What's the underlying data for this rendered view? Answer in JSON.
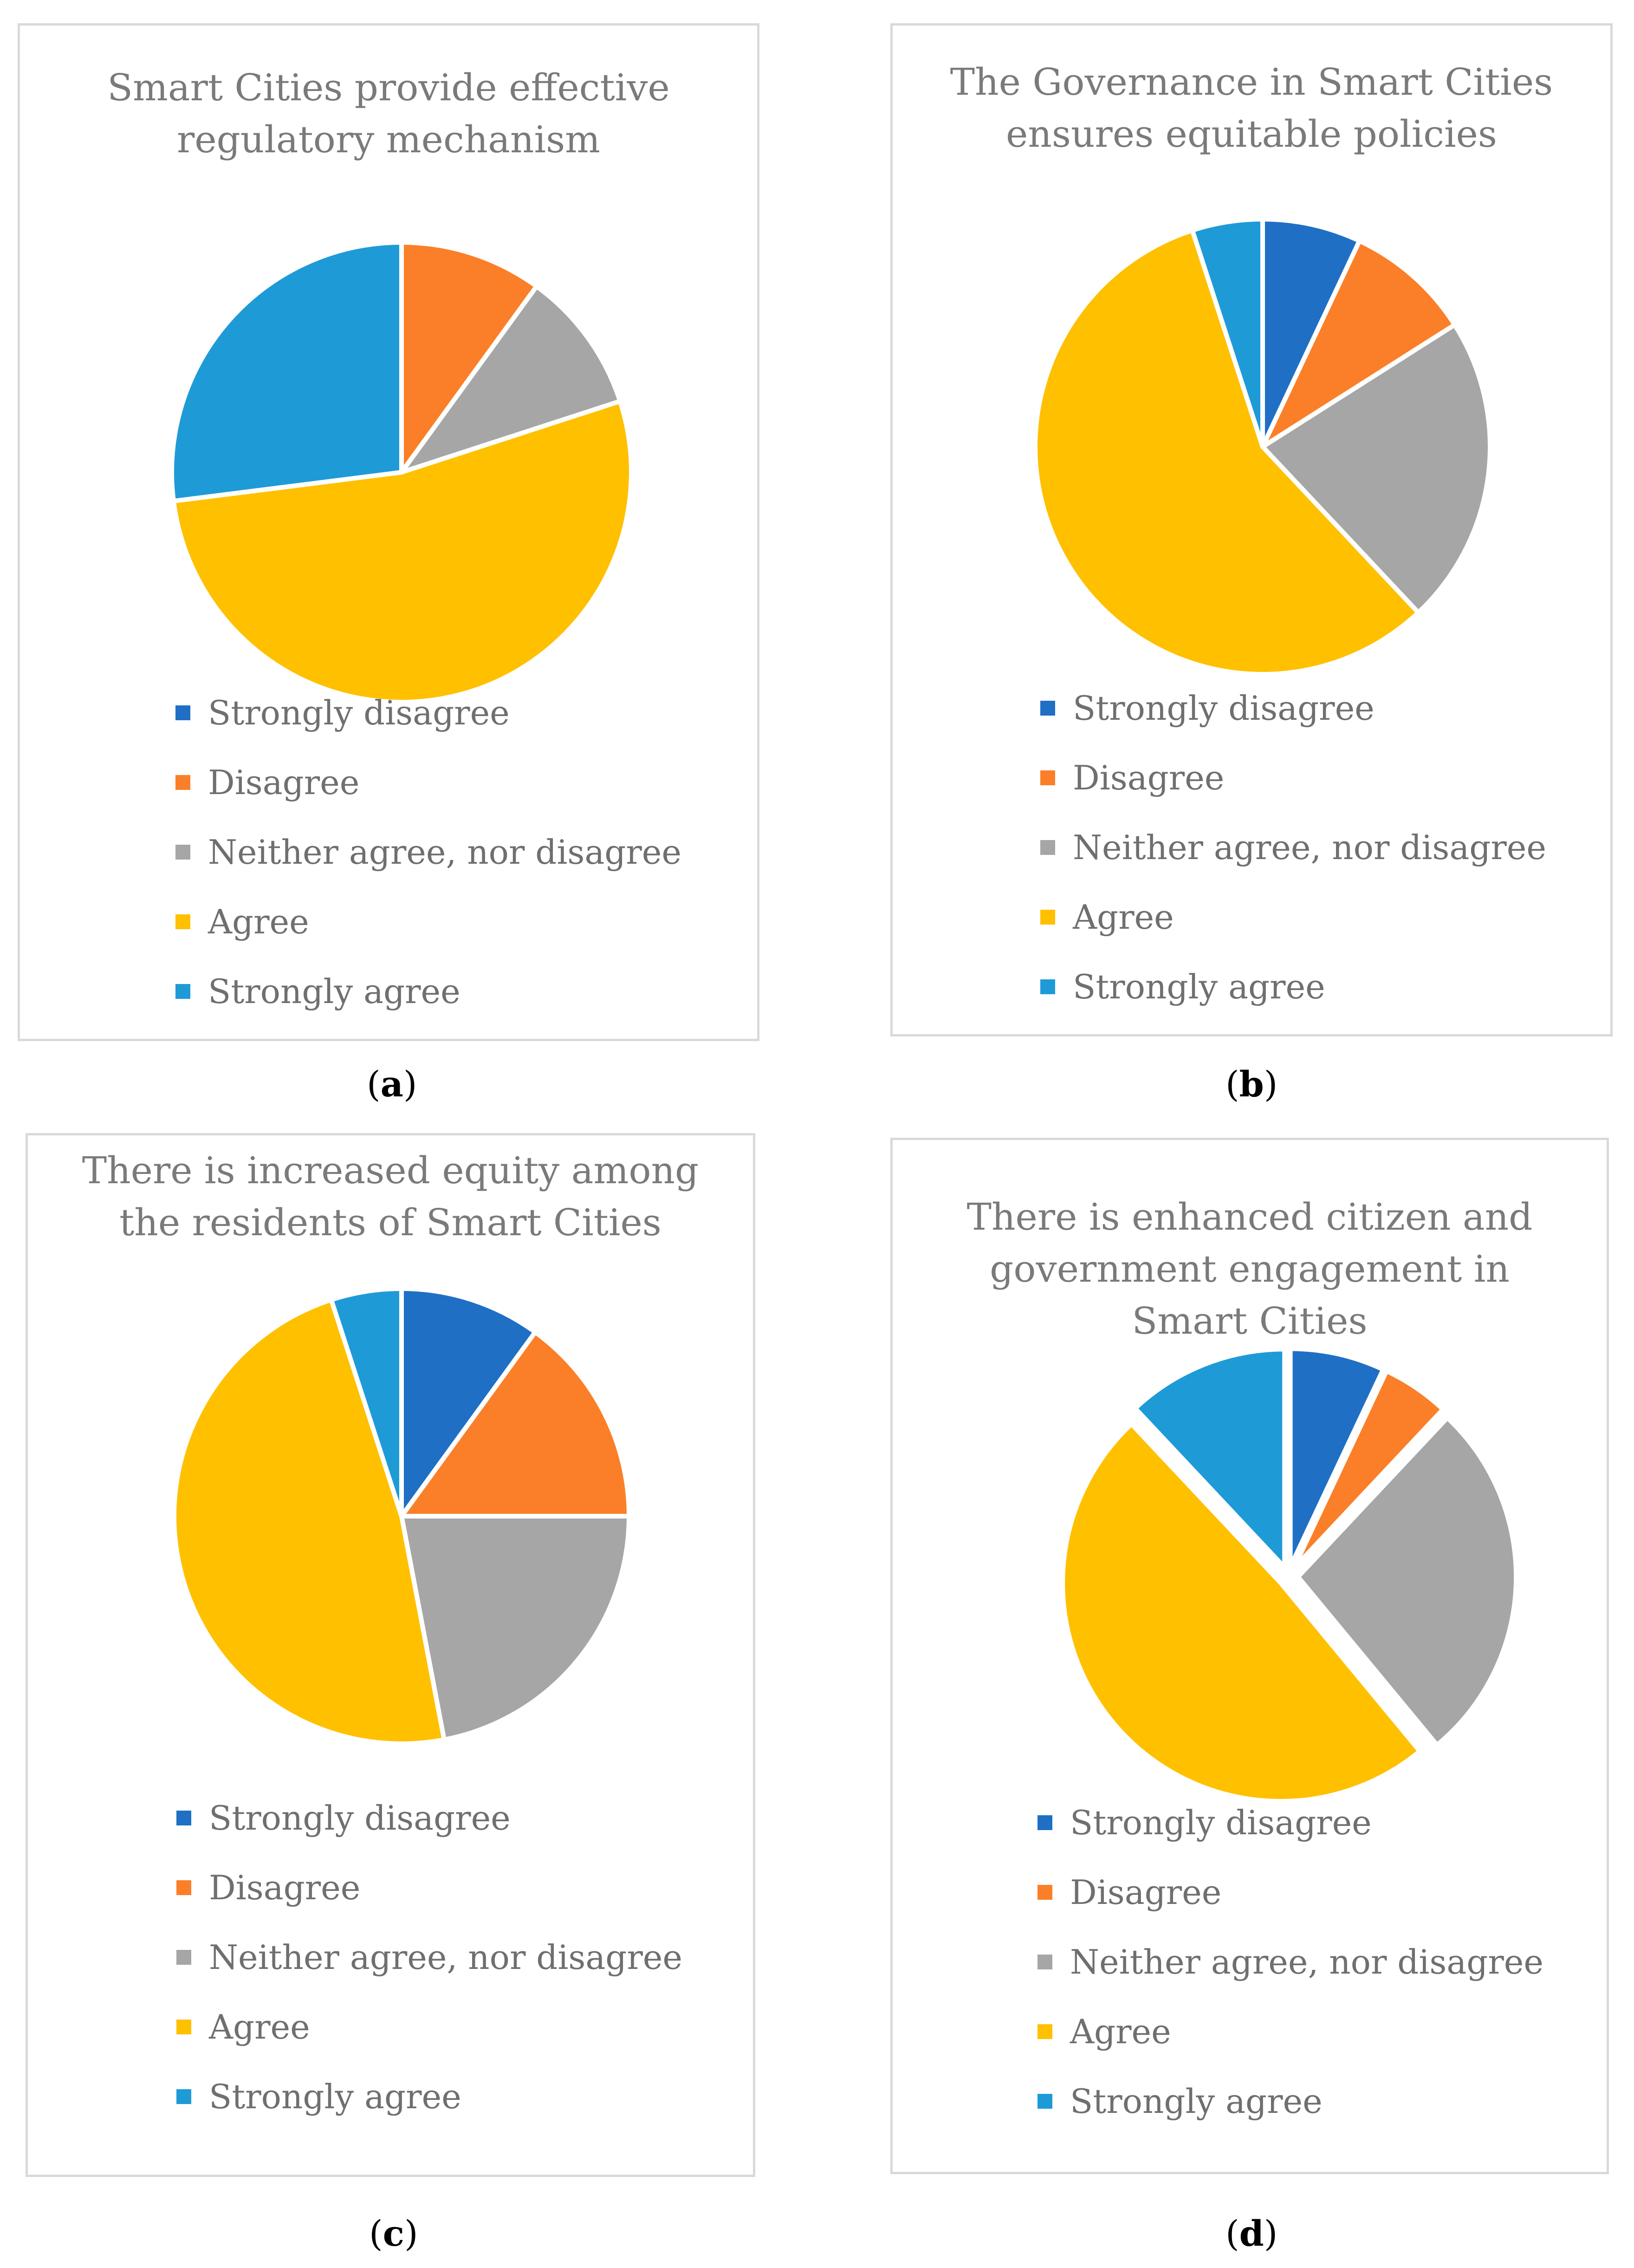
{
  "legend_labels": [
    "Strongly disagree",
    "Disagree",
    "Neither agree, nor disagree",
    "Agree",
    "Strongly agree"
  ],
  "colors": {
    "strongly_disagree": "#1f6fc5",
    "disagree": "#fb7f28",
    "neither": "#a6a6a6",
    "agree": "#ffc000",
    "strongly_agree": "#1e9bd7",
    "panel_border": "#d9d9d9",
    "title_text": "#7a7a7a"
  },
  "chart_data": [
    {
      "type": "pie",
      "title": "Smart Cities provide effective regulatory mechanism",
      "title_lines": [
        "Smart Cities provide effective",
        "regulatory mechanism"
      ],
      "caption": "a",
      "categories": [
        "Strongly disagree",
        "Disagree",
        "Neither agree, nor disagree",
        "Agree",
        "Strongly agree"
      ],
      "values": [
        0,
        10,
        10,
        53,
        27
      ],
      "exploded": false
    },
    {
      "type": "pie",
      "title": "The Governance in Smart Cities ensures equitable policies",
      "title_lines": [
        "The Governance in Smart Cities",
        "ensures equitable policies"
      ],
      "caption": "b",
      "categories": [
        "Strongly disagree",
        "Disagree",
        "Neither agree, nor disagree",
        "Agree",
        "Strongly agree"
      ],
      "values": [
        7,
        9,
        22,
        57,
        5
      ],
      "exploded": false
    },
    {
      "type": "pie",
      "title": "There is increased equity among the residents of Smart Cities",
      "title_lines": [
        "There is increased equity among",
        "the residents of Smart Cities"
      ],
      "caption": "c",
      "categories": [
        "Strongly disagree",
        "Disagree",
        "Neither agree, nor disagree",
        "Agree",
        "Strongly agree"
      ],
      "values": [
        10,
        15,
        22,
        48,
        5
      ],
      "exploded": false
    },
    {
      "type": "pie",
      "title": "There is enhanced citizen and government engagement in Smart Cities",
      "title_lines": [
        "There is enhanced citizen and",
        "government engagement in",
        "Smart Cities"
      ],
      "caption": "d",
      "categories": [
        "Strongly disagree",
        "Disagree",
        "Neither agree, nor disagree",
        "Agree",
        "Strongly agree"
      ],
      "values": [
        7,
        5,
        27,
        49,
        12
      ],
      "exploded": true
    }
  ]
}
